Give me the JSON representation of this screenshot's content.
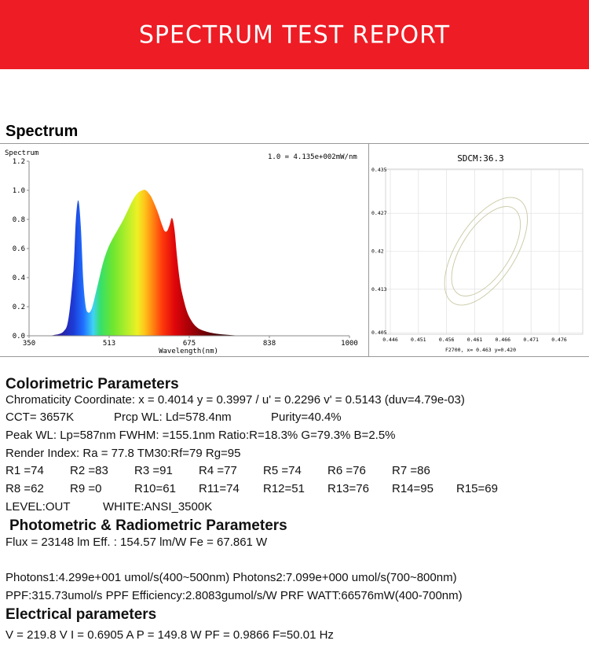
{
  "banner": {
    "title": "SPECTRUM TEST REPORT",
    "bg": "#ee1c25"
  },
  "spectrum": {
    "heading": "Spectrum",
    "chart_title": "Spectrum",
    "scale_note": "1.0 = 4.135e+002mW/nm",
    "xlabel": "Wavelength(nm)",
    "x_ticks": [
      "350",
      "513",
      "675",
      "838",
      "1000"
    ],
    "y_ticks": [
      "1.2",
      "1.0",
      "0.8",
      "0.6",
      "0.4",
      "0.2",
      "0.0"
    ]
  },
  "chart_data": [
    {
      "type": "area",
      "title": "Spectrum",
      "xlabel": "Wavelength(nm)",
      "ylabel": "",
      "xlim": [
        350,
        1000
      ],
      "ylim": [
        0,
        1.2
      ],
      "x": [
        380,
        400,
        420,
        430,
        440,
        445,
        450,
        455,
        460,
        465,
        470,
        475,
        480,
        490,
        500,
        510,
        520,
        530,
        540,
        550,
        560,
        570,
        580,
        587,
        595,
        600,
        610,
        620,
        625,
        630,
        635,
        640,
        645,
        650,
        655,
        660,
        670,
        680,
        690,
        700,
        720,
        740,
        760,
        780
      ],
      "values": [
        0.0,
        0.005,
        0.03,
        0.12,
        0.45,
        0.8,
        0.93,
        0.75,
        0.38,
        0.2,
        0.16,
        0.17,
        0.22,
        0.36,
        0.5,
        0.6,
        0.67,
        0.73,
        0.79,
        0.86,
        0.93,
        0.98,
        1.0,
        1.0,
        0.97,
        0.94,
        0.86,
        0.76,
        0.72,
        0.72,
        0.76,
        0.81,
        0.73,
        0.55,
        0.4,
        0.3,
        0.17,
        0.1,
        0.06,
        0.04,
        0.02,
        0.01,
        0.005,
        0.0
      ]
    },
    {
      "type": "line",
      "title": "SDCM:36.3",
      "xlabel": "F2700, x= 0.463 y=0.420",
      "ylabel": "",
      "xlim": [
        0.446,
        0.476
      ],
      "ylim": [
        0.405,
        0.435
      ],
      "x_ticks": [
        "0.446",
        "0.451",
        "0.456",
        "0.461",
        "0.466",
        "0.471",
        "0.476"
      ],
      "y_ticks": [
        "0.435",
        "0.427",
        "0.42",
        "0.413",
        "0.405"
      ],
      "series": [
        {
          "ellipse": "inner",
          "center": [
            0.463,
            0.42
          ],
          "rx": 0.0043,
          "ry": 0.0094,
          "angle": 33
        },
        {
          "ellipse": "outer",
          "center": [
            0.463,
            0.42
          ],
          "rx": 0.0052,
          "ry": 0.0113,
          "angle": 33
        }
      ],
      "ellipse_color": "#c9c8a4"
    }
  ],
  "cie": {
    "title": "SDCM:36.3",
    "footer": "F2700, x= 0.463 y=0.420",
    "x_ticks": [
      "0.446",
      "0.451",
      "0.456",
      "0.461",
      "0.466",
      "0.471",
      "0.476"
    ],
    "y_ticks": [
      "0.435",
      "0.427",
      "0.42",
      "0.413",
      "0.405"
    ]
  },
  "colorimetric": {
    "heading": "Colorimetric Parameters",
    "chromaticity": "Chromaticity Coordinate: x = 0.4014 y = 0.3997 / u' = 0.2296 v' = 0.5143 (duv=4.79e-03)",
    "cct": "CCT=  3657K",
    "prcp_wl": "Prcp WL:   Ld=578.4nm",
    "purity": "Purity=40.4%",
    "peak": "Peak WL:  Lp=587nm  FWHM:   =155.1nm  Ratio:R=18.3% G=79.3% B=2.5%",
    "render_index": "Render Index: Ra = 77.8 TM30:Rf=79 Rg=95",
    "r_row1": [
      "R1 =74",
      "R2 =83",
      "R3 =91",
      "R4 =77",
      "R5 =74",
      "R6 =76",
      "R7 =86"
    ],
    "r_row2": [
      "R8 =62",
      "R9 =0",
      "R10=61",
      "R11=74",
      "R12=51",
      "R13=76",
      "R14=95",
      "R15=69"
    ],
    "level": "LEVEL:OUT",
    "white": "WHITE:ANSI_3500K"
  },
  "photometric": {
    "heading": "Photometric & Radiometric Parameters",
    "flux": "Flux  = 23148 lm   Eff. : 154.57 lm/W  Fe  = 67.861 W",
    "photons": "Photons1:4.299e+001 umol/s(400~500nm) Photons2:7.099e+000 umol/s(700~800nm)",
    "ppf": "PPF:315.73umol/s  PPF Efficiency:2.8083gumol/s/W  PRF WATT:66576mW(400-700nm)"
  },
  "electrical": {
    "heading": "Electrical parameters",
    "line": "V = 219.8 V     I = 0.6905 A     P = 149.8 W PF = 0.9866 F=50.01 Hz"
  }
}
